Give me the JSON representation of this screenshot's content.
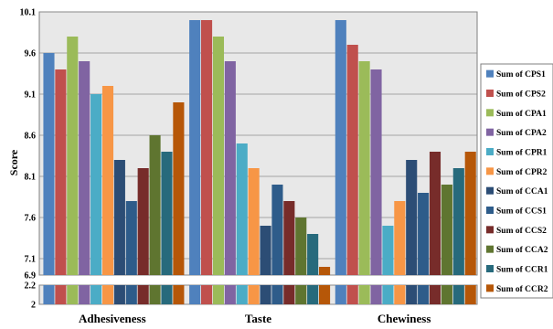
{
  "chart_data": {
    "type": "bar",
    "ylabel": "Score",
    "xlabel": "",
    "title": "",
    "axis_break": true,
    "lower_ticks": [
      "2",
      "2.2"
    ],
    "upper_ticks": [
      "6.9",
      "7.1",
      "7.6",
      "8.1",
      "8.6",
      "9.1",
      "9.6",
      "10.1"
    ],
    "ylim": [
      6.9,
      10.1
    ],
    "grid": true,
    "legend_position": "right",
    "categories": [
      "Adhesiveness",
      "Taste",
      "Chewiness"
    ],
    "series": [
      {
        "name": "Sum of CPS1",
        "color": "#4f81bd",
        "values": [
          9.6,
          10.0,
          10.0
        ]
      },
      {
        "name": "Sum of CPS2",
        "color": "#c0504d",
        "values": [
          9.4,
          10.0,
          9.7
        ]
      },
      {
        "name": "Sum of CPA1",
        "color": "#9bbb59",
        "values": [
          9.8,
          9.8,
          9.5
        ]
      },
      {
        "name": "Sum of CPA2",
        "color": "#8064a2",
        "values": [
          9.5,
          9.5,
          9.4
        ]
      },
      {
        "name": "Sum of CPR1",
        "color": "#4bacc6",
        "values": [
          9.1,
          8.5,
          7.5
        ]
      },
      {
        "name": "Sum of CPR2",
        "color": "#f79646",
        "values": [
          9.2,
          8.2,
          7.8
        ]
      },
      {
        "name": "Sum of CCA1",
        "color": "#2c4d75",
        "values": [
          8.3,
          7.5,
          8.3
        ]
      },
      {
        "name": "Sum of CCS1",
        "color": "#2e5c8a",
        "values": [
          7.8,
          8.0,
          7.9
        ]
      },
      {
        "name": "Sum of CCS2",
        "color": "#772c2a",
        "values": [
          8.2,
          7.8,
          8.4
        ]
      },
      {
        "name": "Sum of CCA2",
        "color": "#5f7530",
        "values": [
          8.6,
          7.6,
          8.0
        ]
      },
      {
        "name": "Sum of CCR1",
        "color": "#276a7c",
        "values": [
          8.4,
          7.4,
          8.2
        ]
      },
      {
        "name": "Sum of CCR2",
        "color": "#b65708",
        "values": [
          9.0,
          7.0,
          8.4
        ]
      }
    ]
  }
}
